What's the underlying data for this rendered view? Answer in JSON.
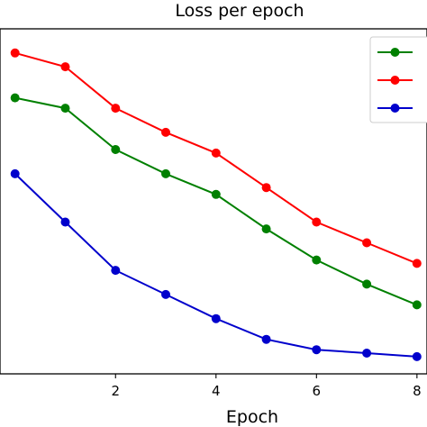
{
  "chart_data": {
    "type": "line",
    "title": "Loss per epoch",
    "xlabel": "Epoch",
    "ylabel": "",
    "xlim": [
      -0.3,
      8.2
    ],
    "ylim": [
      0,
      1
    ],
    "x_ticks": [
      2,
      4,
      6,
      8
    ],
    "x_tick_labels": [
      "2",
      "4",
      "6",
      "8"
    ],
    "grid": false,
    "legend": "top-right",
    "x": [
      0,
      1,
      2,
      3,
      4,
      5,
      6,
      7,
      8
    ],
    "series": [
      {
        "color": "#008000",
        "values": [
          0.8,
          0.77,
          0.65,
          0.58,
          0.52,
          0.42,
          0.33,
          0.26,
          0.2
        ]
      },
      {
        "color": "#ff0000",
        "values": [
          0.93,
          0.89,
          0.77,
          0.7,
          0.64,
          0.54,
          0.44,
          0.38,
          0.32
        ]
      },
      {
        "color": "#0000cc",
        "values": [
          0.58,
          0.44,
          0.3,
          0.23,
          0.16,
          0.1,
          0.07,
          0.06,
          0.05
        ]
      }
    ]
  }
}
